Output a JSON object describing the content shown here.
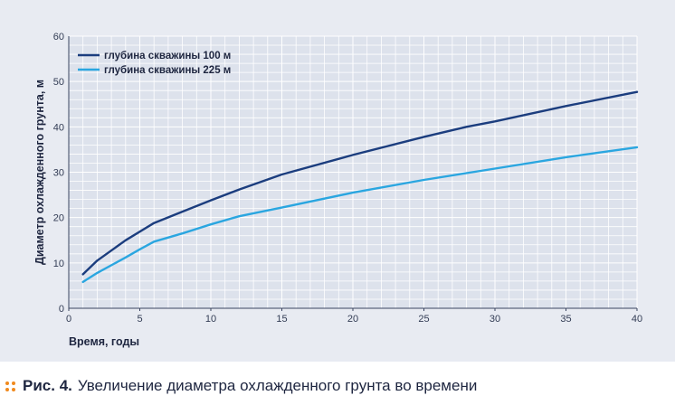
{
  "chart_data": {
    "type": "line",
    "title": "",
    "xlabel": "Время, годы",
    "ylabel": "Диаметр охлажденного грунта, м",
    "xlim": [
      0,
      40
    ],
    "ylim": [
      0,
      60
    ],
    "xticks": [
      "0",
      "5",
      "10",
      "15",
      "20",
      "25",
      "30",
      "35",
      "40"
    ],
    "yticks": [
      "0",
      "10",
      "20",
      "30",
      "40",
      "50",
      "60"
    ],
    "grid": true,
    "legend_position": "top-left",
    "series": [
      {
        "name": "глубина скважины 100 м",
        "color": "#1b3d7e",
        "x": [
          1,
          2,
          4,
          6,
          8,
          10,
          12,
          15,
          20,
          25,
          28,
          30,
          35,
          40
        ],
        "y": [
          7.5,
          10.5,
          15,
          18.8,
          21.3,
          23.8,
          26.2,
          29.5,
          33.8,
          37.8,
          40,
          41.2,
          44.6,
          47.7
        ]
      },
      {
        "name": "глубина скважины 225 м",
        "color": "#2aa6e0",
        "x": [
          1,
          2,
          4,
          5,
          6,
          8,
          10,
          12,
          15,
          20,
          25,
          30,
          35,
          40
        ],
        "y": [
          5.8,
          7.8,
          11.2,
          13,
          14.7,
          16.5,
          18.5,
          20.3,
          22.2,
          25.5,
          28.3,
          30.8,
          33.3,
          35.5
        ]
      }
    ]
  },
  "caption": {
    "number": "Рис. 4.",
    "text": "Увеличение диаметра охлажденного грунта во времени",
    "dot_color": "#f08a1e"
  }
}
